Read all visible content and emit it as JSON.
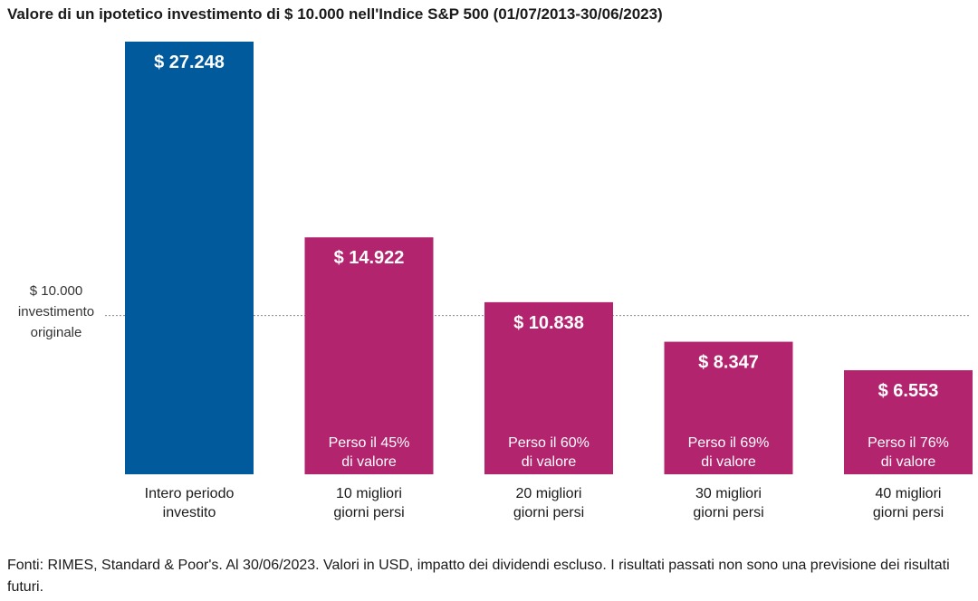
{
  "chart_data": {
    "type": "bar",
    "title": "Valore di un ipotetico investimento di $ 10.000 nell'Indice S&P 500 (01/07/2013-30/06/2023)",
    "categories": [
      [
        "Intero periodo",
        "investito"
      ],
      [
        "10 migliori",
        "giorni persi"
      ],
      [
        "20 migliori",
        "giorni persi"
      ],
      [
        "30 migliori",
        "giorni persi"
      ],
      [
        "40 migliori",
        "giorni persi"
      ]
    ],
    "values": [
      27248,
      14922,
      10838,
      8347,
      6553
    ],
    "value_labels": [
      "$ 27.248",
      "$ 14.922",
      "$ 10.838",
      "$ 8.347",
      "$ 6.553"
    ],
    "inner_labels": [
      [],
      [
        "Perso il 45%",
        "di valore"
      ],
      [
        "Perso il 60%",
        "di valore"
      ],
      [
        "Perso il 69%",
        "di valore"
      ],
      [
        "Perso il 76%",
        "di valore"
      ]
    ],
    "colors": [
      "#005a9c",
      "#b3246f",
      "#b3246f",
      "#b3246f",
      "#b3246f"
    ],
    "reference_line": {
      "value": 10000,
      "label": [
        "$ 10.000",
        "investimento",
        "originale"
      ],
      "style": "dotted"
    },
    "ylim": [
      0,
      27248
    ],
    "grid": false,
    "legend": "none",
    "xlabel": "",
    "ylabel": ""
  },
  "source_note": "Fonti: RIMES, Standard & Poor's. Al 30/06/2023. Valori in USD, impatto dei dividendi escluso. I risultati passati non sono una previsione dei risultati futuri."
}
